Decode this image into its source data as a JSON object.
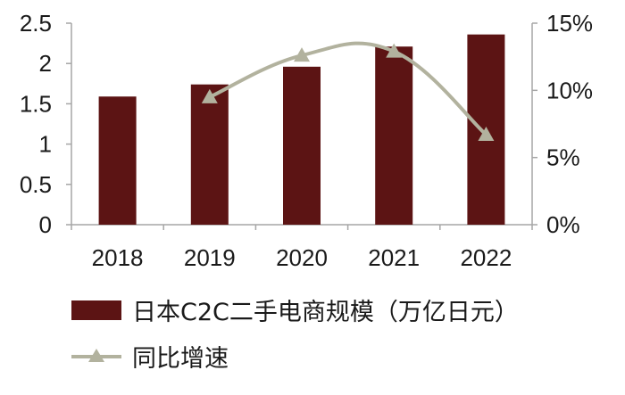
{
  "chart_data": {
    "type": "bar",
    "categories": [
      "2018",
      "2019",
      "2020",
      "2021",
      "2022"
    ],
    "series": [
      {
        "name": "日本C2C二手电商规模（万亿日元）",
        "type": "bar",
        "axis": "left",
        "values": [
          1.59,
          1.74,
          1.96,
          2.21,
          2.36
        ]
      },
      {
        "name": "同比增速",
        "type": "line",
        "axis": "right",
        "values": [
          9.5,
          12.6,
          12.9,
          6.7
        ],
        "x": [
          "2019",
          "2020",
          "2021",
          "2022"
        ]
      }
    ],
    "y_left": {
      "min": 0,
      "max": 2.5,
      "ticks": [
        "0",
        "0.5",
        "1",
        "1.5",
        "2",
        "2.5"
      ]
    },
    "y_right": {
      "min": 0,
      "max": 15,
      "ticks": [
        "0%",
        "5%",
        "10%",
        "15%"
      ]
    },
    "legend_position": "bottom-left",
    "grid": false,
    "colors": {
      "bar": "#5c1414",
      "line": "#b2b29e",
      "axis": "#a6a6a6",
      "text": "#1a1a1a"
    }
  }
}
